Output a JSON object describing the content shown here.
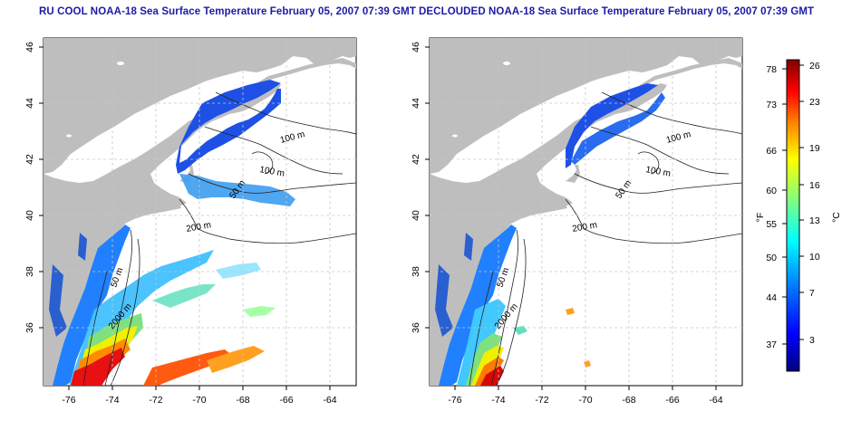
{
  "panels": [
    {
      "id": "left",
      "title": "RU COOL NOAA-18 Sea Surface Temperature February 05, 2007 07:39 GMT"
    },
    {
      "id": "right",
      "title": "DECLOUDED NOAA-18 Sea Surface Temperature February 05, 2007 07:39 GMT"
    }
  ],
  "axes": {
    "longitude_ticks": [
      "-76",
      "-74",
      "-72",
      "-70",
      "-68",
      "-66",
      "-64"
    ],
    "latitude_ticks": [
      "46",
      "44",
      "42",
      "40",
      "38",
      "36"
    ]
  },
  "contour_labels": {
    "m100_a": "100 m",
    "m100_b": "100 m",
    "m50_a": "50 m",
    "m200": "200 m",
    "m50_b": "50 m",
    "m2000": "2000 m"
  },
  "colorbar": {
    "fahrenheit_label": "°F",
    "celsius_label": "°C",
    "fahrenheit_ticks": [
      "78",
      "73",
      "66",
      "60",
      "55",
      "50",
      "44",
      "37"
    ],
    "celsius_ticks": [
      "26",
      "23",
      "19",
      "16",
      "13",
      "10",
      "7",
      "3"
    ],
    "colors": [
      "#000080",
      "#0000ff",
      "#0080ff",
      "#00ffff",
      "#80ff80",
      "#ffff00",
      "#ff8000",
      "#ff0000",
      "#800000"
    ]
  },
  "colors": {
    "land": "#bebebe",
    "title": "#1a1aa8",
    "grid": "#c8c8c8"
  }
}
